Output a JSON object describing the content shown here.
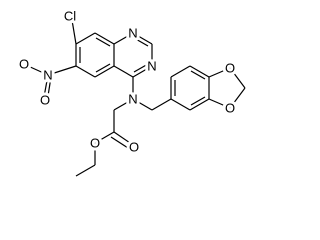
{
  "molecule": {
    "atoms": [
      "Cl",
      "N",
      "N",
      "N",
      "O",
      "O",
      "N",
      "O",
      "O",
      "O",
      "O"
    ]
  }
}
